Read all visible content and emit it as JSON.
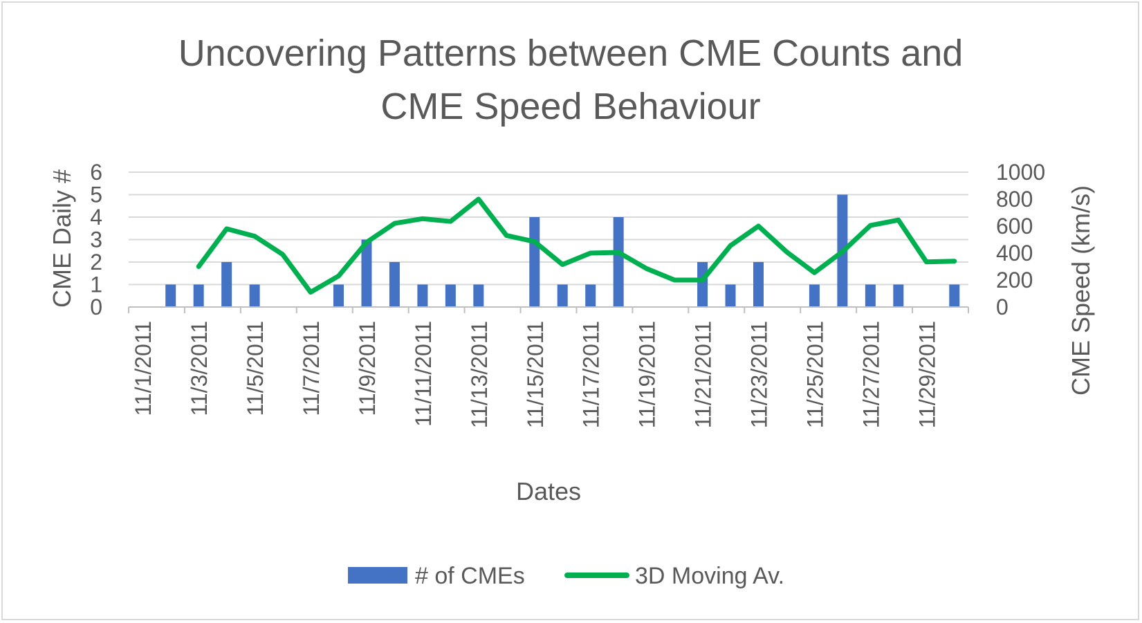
{
  "chart_data": {
    "type": "bar+line",
    "title": "Uncovering Patterns between CME Counts and CME Speed Behaviour",
    "title_lines": [
      "Uncovering Patterns between CME Counts and",
      "CME Speed Behaviour"
    ],
    "xlabel": "Dates",
    "ylabel_left": "CME Daily #",
    "ylabel_right": "CME Speed (km/s)",
    "ylim_left": [
      0,
      6
    ],
    "ylim_right": [
      0,
      1000
    ],
    "yticks_left": [
      "0",
      "1",
      "2",
      "3",
      "4",
      "5",
      "6"
    ],
    "yticks_right": [
      "0",
      "200",
      "400",
      "600",
      "800",
      "1000"
    ],
    "xtick_labels": [
      "11/1/2011",
      "11/3/2011",
      "11/5/2011",
      "11/7/2011",
      "11/9/2011",
      "11/11/2011",
      "11/13/2011",
      "11/15/2011",
      "11/17/2011",
      "11/19/2011",
      "11/21/2011",
      "11/23/2011",
      "11/25/2011",
      "11/27/2011",
      "11/29/2011"
    ],
    "categories": [
      "11/1/2011",
      "11/2/2011",
      "11/3/2011",
      "11/4/2011",
      "11/5/2011",
      "11/6/2011",
      "11/7/2011",
      "11/8/2011",
      "11/9/2011",
      "11/10/2011",
      "11/11/2011",
      "11/12/2011",
      "11/13/2011",
      "11/14/2011",
      "11/15/2011",
      "11/16/2011",
      "11/17/2011",
      "11/18/2011",
      "11/19/2011",
      "11/20/2011",
      "11/21/2011",
      "11/22/2011",
      "11/23/2011",
      "11/24/2011",
      "11/25/2011",
      "11/26/2011",
      "11/27/2011",
      "11/28/2011",
      "11/29/2011",
      "11/30/2011"
    ],
    "series": [
      {
        "name": "# of CMEs",
        "type": "bar",
        "axis": "left",
        "color": "#4472c4",
        "values": [
          0,
          1,
          1,
          2,
          1,
          0,
          0,
          1,
          3,
          2,
          1,
          1,
          1,
          0,
          4,
          1,
          1,
          4,
          0,
          0,
          2,
          1,
          2,
          0,
          1,
          5,
          1,
          1,
          0,
          1
        ]
      },
      {
        "name": "3D Moving Av.",
        "type": "line",
        "axis": "right",
        "color": "#00b050",
        "values": [
          null,
          null,
          300,
          580,
          525,
          390,
          110,
          230,
          480,
          620,
          655,
          635,
          800,
          530,
          485,
          315,
          400,
          405,
          285,
          200,
          200,
          455,
          600,
          410,
          255,
          410,
          605,
          645,
          335,
          340
        ]
      }
    ],
    "legend": [
      "# of CMEs",
      "3D Moving Av."
    ],
    "legend_position": "bottom",
    "grid": true
  }
}
